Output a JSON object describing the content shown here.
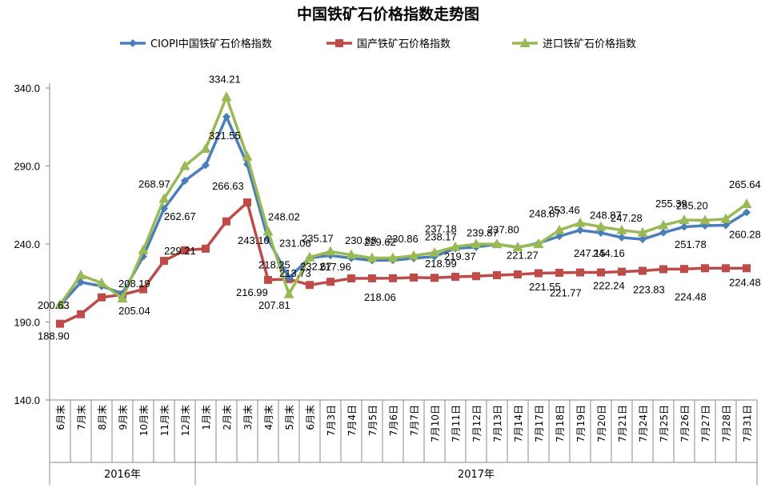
{
  "chart_data": {
    "type": "line",
    "title": "中国铁矿石价格指数走势图",
    "categories": [
      "6月末",
      "7月末",
      "8月末",
      "9月末",
      "10月末",
      "11月末",
      "12月末",
      "1月末",
      "2月末",
      "3月末",
      "4月末",
      "5月末",
      "6月末",
      "7月3日",
      "7月4日",
      "7月5日",
      "7月6日",
      "7月7日",
      "7月10日",
      "7月11日",
      "7月12日",
      "7月13日",
      "7月14日",
      "7月17日",
      "7月18日",
      "7月19日",
      "7月20日",
      "7月21日",
      "7月24日",
      "7月25日",
      "7月26日",
      "7月27日",
      "7月28日",
      "7月31日"
    ],
    "category_groups": [
      {
        "label": "2016年",
        "start": 0,
        "end": 6
      },
      {
        "label": "2017年",
        "start": 7,
        "end": 33
      }
    ],
    "ylim": [
      140,
      340
    ],
    "yticks": [
      "140.0",
      "190.0",
      "240.0",
      "290.0",
      "340.0"
    ],
    "legend_position": "top",
    "series": [
      {
        "name": "CIOPI中国铁矿石价格指数",
        "color": "#4a7ebb",
        "marker": "diamond",
        "values": [
          200.63,
          215.5,
          213.0,
          208.19,
          232.0,
          262.67,
          280.5,
          290.5,
          321.55,
          291.0,
          243.1,
          218.25,
          231.06,
          232.67,
          230.88,
          229.5,
          229.62,
          230.86,
          232.0,
          237.18,
          238.0,
          239.87,
          237.8,
          240.5,
          245.0,
          248.87,
          247.15,
          244.16,
          243.0,
          247.28,
          251.0,
          251.78,
          252.0,
          260.28
        ]
      },
      {
        "name": "国产铁矿石价格指数",
        "color": "#be4b48",
        "marker": "square",
        "values": [
          188.9,
          195.0,
          205.8,
          207.5,
          211.0,
          229.21,
          236.0,
          237.0,
          254.5,
          266.63,
          216.99,
          217.5,
          213.73,
          215.8,
          217.96,
          218.0,
          218.06,
          218.5,
          218.3,
          218.99,
          219.37,
          220.0,
          220.5,
          221.27,
          221.55,
          221.77,
          221.77,
          222.24,
          222.8,
          223.83,
          224.0,
          224.48,
          224.48,
          224.48
        ]
      },
      {
        "name": "进口铁矿石价格指数",
        "color": "#98b954",
        "marker": "triangle",
        "values": [
          201.0,
          220.0,
          215.0,
          205.04,
          236.0,
          268.97,
          290.0,
          301.0,
          334.21,
          296.0,
          248.02,
          207.81,
          231.5,
          235.17,
          233.0,
          231.0,
          231.0,
          232.5,
          234.5,
          238.17,
          240.0,
          239.87,
          238.0,
          240.0,
          248.87,
          253.46,
          251.0,
          248.87,
          247.28,
          252.0,
          255.39,
          255.2,
          256.0,
          265.64
        ]
      }
    ],
    "data_labels": [
      {
        "text": "200.63",
        "x": 0,
        "y": 200.63
      },
      {
        "text": "188.90",
        "x": 0,
        "y": 188.9
      },
      {
        "text": "208.19",
        "x": 3,
        "y": 208.19
      },
      {
        "text": "205.04",
        "x": 3,
        "y": 205.04
      },
      {
        "text": "268.97",
        "x": 5,
        "y": 268.97
      },
      {
        "text": "262.67",
        "x": 5,
        "y": 262.67
      },
      {
        "text": "229.21",
        "x": 5,
        "y": 229.21
      },
      {
        "text": "334.21",
        "x": 8,
        "y": 334.21
      },
      {
        "text": "321.55",
        "x": 8,
        "y": 321.55
      },
      {
        "text": "266.63",
        "x": 9,
        "y": 266.63
      },
      {
        "text": "248.02",
        "x": 10,
        "y": 248.02
      },
      {
        "text": "243.10",
        "x": 10,
        "y": 243.1
      },
      {
        "text": "216.99",
        "x": 10,
        "y": 216.99
      },
      {
        "text": "218.25",
        "x": 11,
        "y": 218.25
      },
      {
        "text": "207.81",
        "x": 11,
        "y": 207.81
      },
      {
        "text": "231.06",
        "x": 12,
        "y": 231.06
      },
      {
        "text": "213.73",
        "x": 12,
        "y": 213.73
      },
      {
        "text": "235.17",
        "x": 13,
        "y": 235.17
      },
      {
        "text": "232.67",
        "x": 13,
        "y": 232.67
      },
      {
        "text": "230.88",
        "x": 14,
        "y": 230.88
      },
      {
        "text": "217.96",
        "x": 14,
        "y": 217.96
      },
      {
        "text": "229.62",
        "x": 16,
        "y": 229.62
      },
      {
        "text": "218.06",
        "x": 16,
        "y": 218.06
      },
      {
        "text": "230.86",
        "x": 17,
        "y": 230.86
      },
      {
        "text": "238.17",
        "x": 19,
        "y": 238.17
      },
      {
        "text": "237.18",
        "x": 19,
        "y": 237.18
      },
      {
        "text": "218.99",
        "x": 19,
        "y": 218.99
      },
      {
        "text": "239.87",
        "x": 21,
        "y": 239.87
      },
      {
        "text": "219.37",
        "x": 20,
        "y": 219.37
      },
      {
        "text": "237.80",
        "x": 22,
        "y": 237.8
      },
      {
        "text": "221.27",
        "x": 23,
        "y": 221.27
      },
      {
        "text": "248.87",
        "x": 24,
        "y": 248.87
      },
      {
        "text": "221.55",
        "x": 24,
        "y": 221.55
      },
      {
        "text": "253.46",
        "x": 25,
        "y": 253.46
      },
      {
        "text": "221.77",
        "x": 25,
        "y": 221.77
      },
      {
        "text": "247.15",
        "x": 26,
        "y": 247.15
      },
      {
        "text": "248.87",
        "x": 27,
        "y": 248.87
      },
      {
        "text": "244.16",
        "x": 27,
        "y": 244.16
      },
      {
        "text": "222.24",
        "x": 27,
        "y": 222.24
      },
      {
        "text": "247.28",
        "x": 28,
        "y": 247.28
      },
      {
        "text": "255.39",
        "x": 30,
        "y": 255.39
      },
      {
        "text": "223.83",
        "x": 29,
        "y": 223.83
      },
      {
        "text": "255.20",
        "x": 31,
        "y": 255.2
      },
      {
        "text": "251.78",
        "x": 31,
        "y": 251.78
      },
      {
        "text": "224.48",
        "x": 31,
        "y": 224.48
      },
      {
        "text": "265.64",
        "x": 33,
        "y": 265.64
      },
      {
        "text": "260.28",
        "x": 33,
        "y": 260.28
      },
      {
        "text": "224.48",
        "x": 33,
        "y": 224.48
      }
    ],
    "grid": false
  }
}
